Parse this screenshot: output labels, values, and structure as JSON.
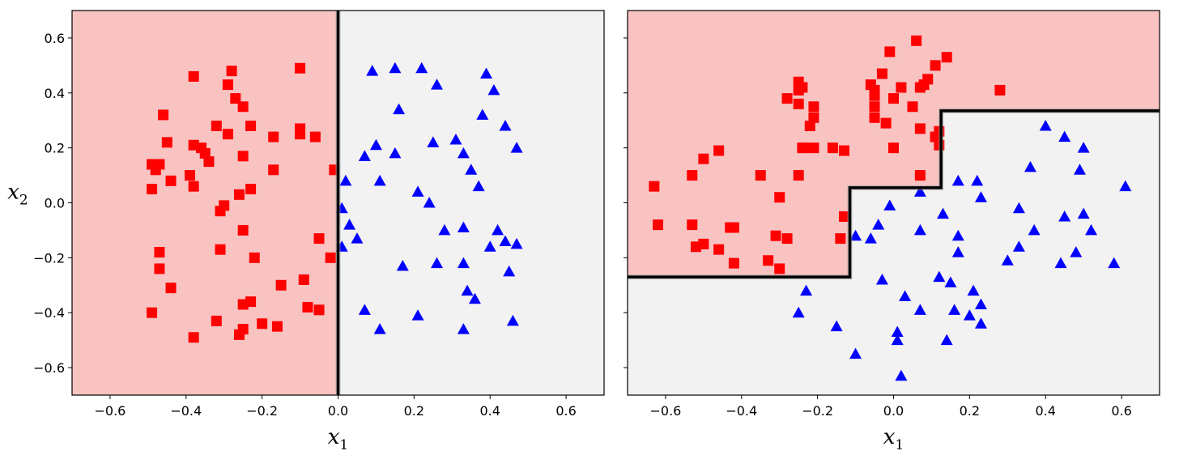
{
  "colors": {
    "class0_region": "#f9c3c2",
    "class1_region": "#f2f2f2",
    "class0_marker": "#ff0000",
    "class1_marker": "#0000ff",
    "boundary": "#000000"
  },
  "chart_data": [
    {
      "type": "scatter",
      "title": "",
      "xlabel": "x",
      "xlabel_sub": "1",
      "ylabel": "x",
      "ylabel_sub": "2",
      "xlim": [
        -0.7,
        0.7
      ],
      "ylim": [
        -0.7,
        0.7
      ],
      "x_ticks": [
        -0.6,
        -0.4,
        -0.2,
        0.0,
        0.2,
        0.4,
        0.6
      ],
      "x_tick_labels": [
        "−0.6",
        "−0.4",
        "−0.2",
        "0.0",
        "0.2",
        "0.4",
        "0.6"
      ],
      "y_ticks": [
        0.6,
        0.4,
        0.2,
        0.0,
        -0.2,
        -0.4,
        -0.6
      ],
      "y_tick_labels": [
        "0.6",
        "0.4",
        "0.2",
        "0.0",
        "−0.2",
        "−0.4",
        "−0.6"
      ],
      "show_y_tick_labels": true,
      "decision_boundary": [
        [
          0.0,
          0.7
        ],
        [
          0.0,
          -0.7
        ]
      ],
      "class0_region": "left",
      "series": [
        {
          "marker": "square",
          "points": [
            [
              -0.38,
              0.46
            ],
            [
              -0.1,
              0.49
            ],
            [
              -0.28,
              0.48
            ],
            [
              -0.29,
              0.43
            ],
            [
              -0.27,
              0.38
            ],
            [
              -0.25,
              0.35
            ],
            [
              -0.46,
              0.32
            ],
            [
              -0.32,
              0.28
            ],
            [
              -0.23,
              0.28
            ],
            [
              -0.29,
              0.25
            ],
            [
              -0.1,
              0.27
            ],
            [
              -0.1,
              0.25
            ],
            [
              -0.06,
              0.24
            ],
            [
              -0.17,
              0.24
            ],
            [
              -0.45,
              0.22
            ],
            [
              -0.38,
              0.21
            ],
            [
              -0.36,
              0.2
            ],
            [
              -0.35,
              0.18
            ],
            [
              -0.34,
              0.15
            ],
            [
              -0.25,
              0.17
            ],
            [
              -0.49,
              0.14
            ],
            [
              -0.47,
              0.14
            ],
            [
              -0.48,
              0.12
            ],
            [
              -0.17,
              0.12
            ],
            [
              -0.39,
              0.1
            ],
            [
              -0.49,
              0.05
            ],
            [
              -0.44,
              0.08
            ],
            [
              -0.38,
              0.06
            ],
            [
              -0.23,
              0.05
            ],
            [
              -0.26,
              0.03
            ],
            [
              -0.01,
              0.12
            ],
            [
              -0.3,
              -0.01
            ],
            [
              -0.31,
              -0.03
            ],
            [
              -0.25,
              -0.1
            ],
            [
              -0.05,
              -0.13
            ],
            [
              -0.31,
              -0.17
            ],
            [
              -0.47,
              -0.18
            ],
            [
              -0.22,
              -0.2
            ],
            [
              -0.02,
              -0.2
            ],
            [
              -0.47,
              -0.24
            ],
            [
              -0.15,
              -0.3
            ],
            [
              -0.09,
              -0.28
            ],
            [
              -0.44,
              -0.31
            ],
            [
              -0.23,
              -0.36
            ],
            [
              -0.25,
              -0.37
            ],
            [
              -0.08,
              -0.38
            ],
            [
              -0.05,
              -0.39
            ],
            [
              -0.49,
              -0.4
            ],
            [
              -0.32,
              -0.43
            ],
            [
              -0.2,
              -0.44
            ],
            [
              -0.16,
              -0.45
            ],
            [
              -0.25,
              -0.46
            ],
            [
              -0.26,
              -0.48
            ],
            [
              -0.38,
              -0.49
            ]
          ]
        },
        {
          "marker": "triangle",
          "points": [
            [
              0.09,
              0.48
            ],
            [
              0.15,
              0.49
            ],
            [
              0.22,
              0.49
            ],
            [
              0.26,
              0.43
            ],
            [
              0.39,
              0.47
            ],
            [
              0.41,
              0.41
            ],
            [
              0.16,
              0.34
            ],
            [
              0.38,
              0.32
            ],
            [
              0.44,
              0.28
            ],
            [
              0.31,
              0.23
            ],
            [
              0.25,
              0.22
            ],
            [
              0.47,
              0.2
            ],
            [
              0.1,
              0.21
            ],
            [
              0.07,
              0.17
            ],
            [
              0.15,
              0.18
            ],
            [
              0.33,
              0.18
            ],
            [
              0.35,
              0.12
            ],
            [
              0.11,
              0.08
            ],
            [
              0.02,
              0.08
            ],
            [
              0.37,
              0.06
            ],
            [
              0.21,
              0.04
            ],
            [
              0.24,
              0.0
            ],
            [
              0.01,
              -0.02
            ],
            [
              0.03,
              -0.08
            ],
            [
              0.42,
              -0.1
            ],
            [
              0.28,
              -0.1
            ],
            [
              0.33,
              -0.09
            ],
            [
              0.05,
              -0.13
            ],
            [
              0.44,
              -0.14
            ],
            [
              0.47,
              -0.15
            ],
            [
              0.4,
              -0.16
            ],
            [
              0.01,
              -0.16
            ],
            [
              0.26,
              -0.22
            ],
            [
              0.33,
              -0.22
            ],
            [
              0.17,
              -0.23
            ],
            [
              0.45,
              -0.25
            ],
            [
              0.34,
              -0.32
            ],
            [
              0.36,
              -0.35
            ],
            [
              0.07,
              -0.39
            ],
            [
              0.21,
              -0.41
            ],
            [
              0.11,
              -0.46
            ],
            [
              0.33,
              -0.46
            ],
            [
              0.46,
              -0.43
            ]
          ]
        }
      ]
    },
    {
      "type": "scatter",
      "title": "",
      "xlabel": "x",
      "xlabel_sub": "1",
      "ylabel": "",
      "ylabel_sub": "",
      "xlim": [
        -0.7,
        0.7
      ],
      "ylim": [
        -0.7,
        0.7
      ],
      "x_ticks": [
        -0.6,
        -0.4,
        -0.2,
        0.0,
        0.2,
        0.4,
        0.6
      ],
      "x_tick_labels": [
        "−0.6",
        "−0.4",
        "−0.2",
        "0.0",
        "0.2",
        "0.4",
        "0.6"
      ],
      "y_ticks": [
        0.6,
        0.4,
        0.2,
        0.0,
        -0.2,
        -0.4,
        -0.6
      ],
      "y_tick_labels": [],
      "show_y_tick_labels": false,
      "decision_boundary": [
        [
          -0.7,
          -0.27
        ],
        [
          -0.115,
          -0.27
        ],
        [
          -0.115,
          0.055
        ],
        [
          0.125,
          0.055
        ],
        [
          0.125,
          0.335
        ],
        [
          0.7,
          0.335
        ]
      ],
      "class0_region": "above",
      "series": [
        {
          "marker": "square",
          "points": [
            [
              0.06,
              0.59
            ],
            [
              -0.01,
              0.55
            ],
            [
              0.14,
              0.53
            ],
            [
              0.11,
              0.5
            ],
            [
              -0.03,
              0.47
            ],
            [
              0.09,
              0.45
            ],
            [
              0.08,
              0.43
            ],
            [
              0.07,
              0.42
            ],
            [
              -0.25,
              0.44
            ],
            [
              -0.24,
              0.42
            ],
            [
              -0.25,
              0.41
            ],
            [
              -0.06,
              0.43
            ],
            [
              -0.05,
              0.41
            ],
            [
              0.28,
              0.41
            ],
            [
              -0.05,
              0.39
            ],
            [
              0.02,
              0.42
            ],
            [
              -0.28,
              0.38
            ],
            [
              0.0,
              0.38
            ],
            [
              -0.25,
              0.36
            ],
            [
              -0.21,
              0.35
            ],
            [
              -0.05,
              0.35
            ],
            [
              0.05,
              0.35
            ],
            [
              -0.21,
              0.31
            ],
            [
              -0.22,
              0.28
            ],
            [
              -0.05,
              0.31
            ],
            [
              -0.02,
              0.29
            ],
            [
              0.07,
              0.27
            ],
            [
              0.12,
              0.26
            ],
            [
              0.11,
              0.24
            ],
            [
              0.12,
              0.21
            ],
            [
              -0.46,
              0.19
            ],
            [
              -0.24,
              0.2
            ],
            [
              -0.23,
              0.2
            ],
            [
              -0.21,
              0.2
            ],
            [
              -0.16,
              0.2
            ],
            [
              -0.13,
              0.19
            ],
            [
              0.0,
              0.2
            ],
            [
              -0.5,
              0.16
            ],
            [
              -0.53,
              0.1
            ],
            [
              -0.35,
              0.1
            ],
            [
              -0.25,
              0.1
            ],
            [
              0.07,
              0.1
            ],
            [
              -0.63,
              0.06
            ],
            [
              -0.3,
              0.02
            ],
            [
              -0.62,
              -0.08
            ],
            [
              -0.53,
              -0.08
            ],
            [
              -0.43,
              -0.09
            ],
            [
              -0.42,
              -0.09
            ],
            [
              -0.13,
              -0.05
            ],
            [
              -0.31,
              -0.12
            ],
            [
              -0.28,
              -0.13
            ],
            [
              -0.14,
              -0.13
            ],
            [
              -0.52,
              -0.16
            ],
            [
              -0.5,
              -0.15
            ],
            [
              -0.46,
              -0.17
            ],
            [
              -0.42,
              -0.22
            ],
            [
              -0.33,
              -0.21
            ],
            [
              -0.3,
              -0.24
            ]
          ]
        },
        {
          "marker": "triangle",
          "points": [
            [
              0.4,
              0.28
            ],
            [
              0.45,
              0.24
            ],
            [
              0.5,
              0.2
            ],
            [
              0.36,
              0.13
            ],
            [
              0.49,
              0.12
            ],
            [
              0.22,
              0.08
            ],
            [
              0.17,
              0.08
            ],
            [
              0.61,
              0.06
            ],
            [
              0.07,
              0.04
            ],
            [
              0.23,
              0.02
            ],
            [
              -0.01,
              -0.01
            ],
            [
              0.33,
              -0.02
            ],
            [
              0.45,
              -0.05
            ],
            [
              0.5,
              -0.04
            ],
            [
              0.13,
              -0.04
            ],
            [
              -0.04,
              -0.08
            ],
            [
              0.37,
              -0.1
            ],
            [
              0.52,
              -0.1
            ],
            [
              -0.1,
              -0.12
            ],
            [
              -0.06,
              -0.13
            ],
            [
              0.07,
              -0.1
            ],
            [
              0.17,
              -0.12
            ],
            [
              0.33,
              -0.16
            ],
            [
              0.17,
              -0.18
            ],
            [
              0.48,
              -0.18
            ],
            [
              0.3,
              -0.21
            ],
            [
              0.44,
              -0.22
            ],
            [
              0.58,
              -0.22
            ],
            [
              0.12,
              -0.27
            ],
            [
              0.15,
              -0.29
            ],
            [
              -0.03,
              -0.28
            ],
            [
              -0.23,
              -0.32
            ],
            [
              0.03,
              -0.34
            ],
            [
              0.21,
              -0.32
            ],
            [
              0.23,
              -0.37
            ],
            [
              0.07,
              -0.39
            ],
            [
              0.16,
              -0.39
            ],
            [
              0.2,
              -0.41
            ],
            [
              -0.25,
              -0.4
            ],
            [
              0.23,
              -0.44
            ],
            [
              -0.15,
              -0.45
            ],
            [
              0.01,
              -0.47
            ],
            [
              0.01,
              -0.5
            ],
            [
              0.14,
              -0.5
            ],
            [
              -0.1,
              -0.55
            ],
            [
              0.02,
              -0.63
            ]
          ]
        }
      ]
    }
  ]
}
